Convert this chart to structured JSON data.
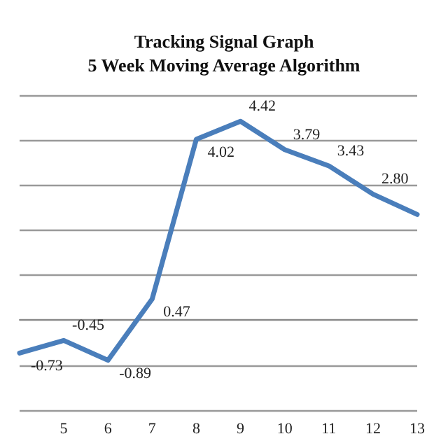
{
  "chart_data": {
    "type": "line",
    "title": "Tracking Signal Graph\n5 Week Moving Average Algorithm",
    "categories": [
      null,
      "5",
      "6",
      "7",
      "8",
      "9",
      "10",
      "11",
      "12",
      "13"
    ],
    "series": [
      {
        "color": "#4a7ebb",
        "values": [
          -0.73,
          -0.45,
          -0.89,
          0.47,
          4.02,
          4.42,
          3.79,
          3.43,
          2.8,
          2.35
        ],
        "value_labels": [
          "-0.73",
          "-0.45",
          "-0.89",
          "0.47",
          "4.02",
          "4.42",
          "3.79",
          "3.43",
          "2.80",
          null
        ]
      }
    ],
    "ylim": [
      -2,
      5
    ],
    "yticks": [
      {
        "value": -2,
        "label": null
      },
      {
        "value": -1,
        "label": null
      },
      {
        "value": 0,
        "label": null
      },
      {
        "value": 1,
        "label": null
      },
      {
        "value": 2,
        "label": null
      },
      {
        "value": 3,
        "label": null
      },
      {
        "value": 4,
        "label": null
      },
      {
        "value": 5,
        "label": null
      }
    ],
    "grid": "y",
    "tick_labels": "x",
    "marker": "none",
    "line_style": "solid"
  }
}
